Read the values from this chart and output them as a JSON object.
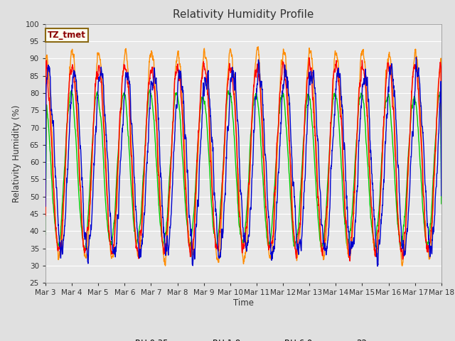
{
  "title": "Relativity Humidity Profile",
  "xlabel": "Time",
  "ylabel": "Relativity Humidity (%)",
  "ylim": [
    25,
    100
  ],
  "yticks": [
    25,
    30,
    35,
    40,
    45,
    50,
    55,
    60,
    65,
    70,
    75,
    80,
    85,
    90,
    95,
    100
  ],
  "xtick_labels": [
    "Mar 3",
    "Mar 4",
    "Mar 5",
    "Mar 6",
    "Mar 7",
    "Mar 8",
    "Mar 9",
    "Mar 10",
    "Mar 11",
    "Mar 12",
    "Mar 13",
    "Mar 14",
    "Mar 15",
    "Mar 16",
    "Mar 17",
    "Mar 18"
  ],
  "annotation_text": "TZ_tmet",
  "annotation_color": "#8B0000",
  "annotation_bg": "#FFFFF0",
  "annotation_border": "#8B6914",
  "series_colors": {
    "RH 0.35m": "#FF0000",
    "RH 1.8m": "#FF8C00",
    "RH 6.0m": "#00CC00",
    "22m": "#0000CC"
  },
  "bg_color": "#E0E0E0",
  "plot_bg": "#E8E8E8",
  "grid_color": "#FFFFFF",
  "num_points": 2000,
  "days": 15,
  "seed": 42
}
